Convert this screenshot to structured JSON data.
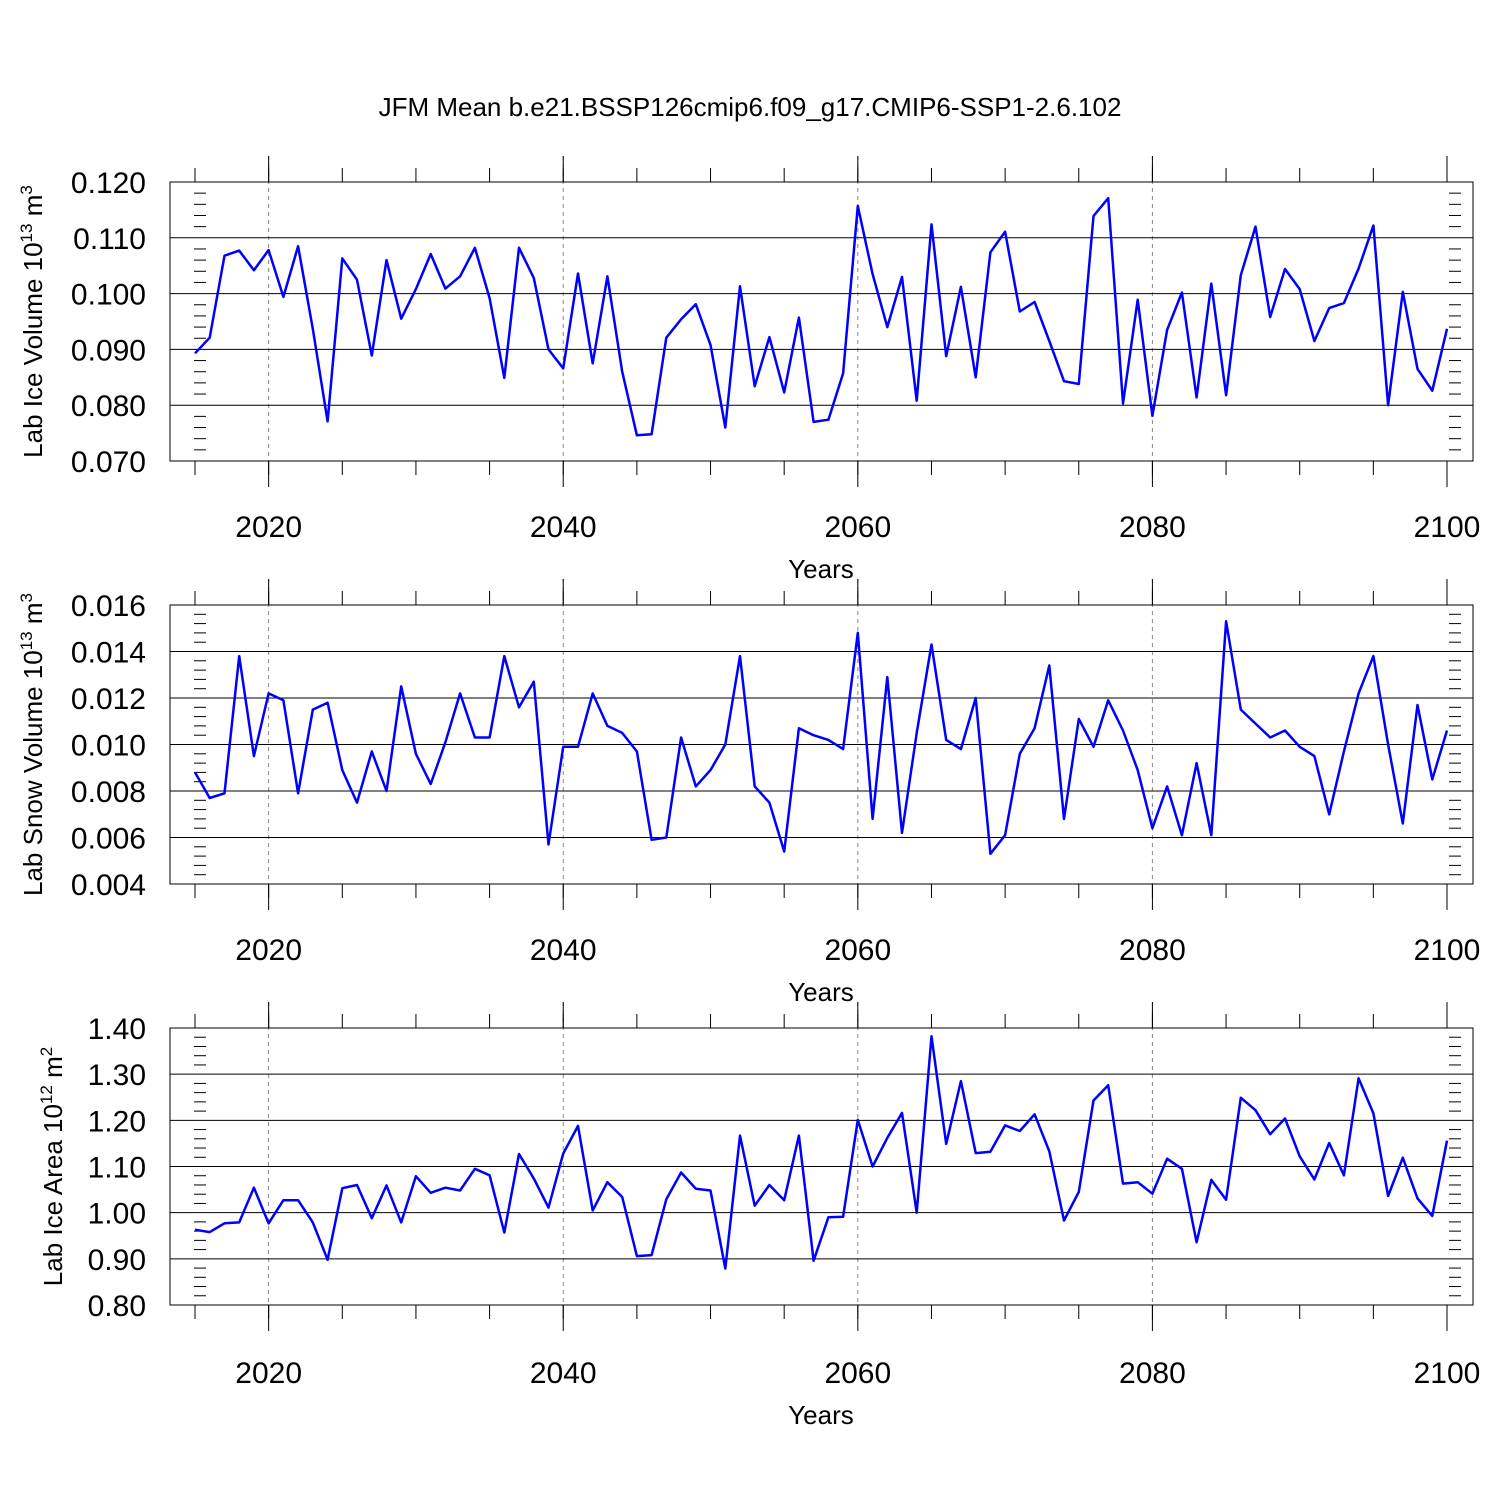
{
  "figure_title": "JFM Mean b.e21.BSSP126cmip6.f09_g17.CMIP6-SSP1-2.6.102",
  "chart_data": [
    {
      "type": "line",
      "ylabel_main": "Lab Ice Volume 10",
      "ylabel_exp": "13",
      "ylabel_unit": "m",
      "ylabel_unit_exp": "3",
      "xlabel": "Years",
      "xlim": [
        2015,
        2100
      ],
      "ylim": [
        0.07,
        0.12
      ],
      "x_ticks": [
        2020,
        2040,
        2060,
        2080,
        2100
      ],
      "y_ticks": [
        "0.070",
        "0.080",
        "0.090",
        "0.100",
        "0.110",
        "0.120"
      ],
      "series_color": "#0000ff",
      "x": [
        2015,
        2016,
        2017,
        2018,
        2019,
        2020,
        2021,
        2022,
        2023,
        2024,
        2025,
        2026,
        2027,
        2028,
        2029,
        2030,
        2031,
        2032,
        2033,
        2034,
        2035,
        2036,
        2037,
        2038,
        2039,
        2040,
        2041,
        2042,
        2043,
        2044,
        2045,
        2046,
        2047,
        2048,
        2049,
        2050,
        2051,
        2052,
        2053,
        2054,
        2055,
        2056,
        2057,
        2058,
        2059,
        2060,
        2061,
        2062,
        2063,
        2064,
        2065,
        2066,
        2067,
        2068,
        2069,
        2070,
        2071,
        2072,
        2073,
        2074,
        2075,
        2076,
        2077,
        2078,
        2079,
        2080,
        2081,
        2082,
        2083,
        2084,
        2085,
        2086,
        2087,
        2088,
        2089,
        2090,
        2091,
        2092,
        2093,
        2094,
        2095,
        2096,
        2097,
        2098,
        2099,
        2100
      ],
      "values": [
        0.0893,
        0.0921,
        0.1068,
        0.1077,
        0.1042,
        0.1078,
        0.0994,
        0.1085,
        0.0937,
        0.0771,
        0.1063,
        0.1025,
        0.0889,
        0.106,
        0.0955,
        0.1008,
        0.1071,
        0.1009,
        0.1031,
        0.1082,
        0.0992,
        0.0849,
        0.1082,
        0.1028,
        0.09,
        0.0866,
        0.1036,
        0.0875,
        0.1031,
        0.086,
        0.0746,
        0.0748,
        0.0921,
        0.0954,
        0.0981,
        0.0908,
        0.076,
        0.1013,
        0.0834,
        0.0922,
        0.0823,
        0.0957,
        0.077,
        0.0774,
        0.0857,
        0.1157,
        0.1035,
        0.094,
        0.103,
        0.0808,
        0.1124,
        0.0888,
        0.1012,
        0.085,
        0.1074,
        0.1111,
        0.0968,
        0.0985,
        0.0915,
        0.0843,
        0.0838,
        0.1139,
        0.1171,
        0.0803,
        0.0989,
        0.0781,
        0.0935,
        0.1002,
        0.0814,
        0.1018,
        0.0818,
        0.1033,
        0.112,
        0.0958,
        0.1044,
        0.1008,
        0.0915,
        0.0974,
        0.0983,
        0.1045,
        0.1122,
        0.08,
        0.1003,
        0.0865,
        0.0826,
        0.0937
      ]
    },
    {
      "type": "line",
      "ylabel_main": "Lab Snow Volume 10",
      "ylabel_exp": "13",
      "ylabel_unit": "m",
      "ylabel_unit_exp": "3",
      "xlabel": "Years",
      "xlim": [
        2015,
        2100
      ],
      "ylim": [
        0.004,
        0.016
      ],
      "x_ticks": [
        2020,
        2040,
        2060,
        2080,
        2100
      ],
      "y_ticks": [
        "0.004",
        "0.006",
        "0.008",
        "0.010",
        "0.012",
        "0.014",
        "0.016"
      ],
      "series_color": "#0000ff",
      "x": [
        2015,
        2016,
        2017,
        2018,
        2019,
        2020,
        2021,
        2022,
        2023,
        2024,
        2025,
        2026,
        2027,
        2028,
        2029,
        2030,
        2031,
        2032,
        2033,
        2034,
        2035,
        2036,
        2037,
        2038,
        2039,
        2040,
        2041,
        2042,
        2043,
        2044,
        2045,
        2046,
        2047,
        2048,
        2049,
        2050,
        2051,
        2052,
        2053,
        2054,
        2055,
        2056,
        2057,
        2058,
        2059,
        2060,
        2061,
        2062,
        2063,
        2064,
        2065,
        2066,
        2067,
        2068,
        2069,
        2070,
        2071,
        2072,
        2073,
        2074,
        2075,
        2076,
        2077,
        2078,
        2079,
        2080,
        2081,
        2082,
        2083,
        2084,
        2085,
        2086,
        2087,
        2088,
        2089,
        2090,
        2091,
        2092,
        2093,
        2094,
        2095,
        2096,
        2097,
        2098,
        2099,
        2100
      ],
      "values": [
        0.0088,
        0.0077,
        0.0079,
        0.0138,
        0.0095,
        0.0122,
        0.0119,
        0.0079,
        0.0115,
        0.0118,
        0.0089,
        0.0075,
        0.0097,
        0.008,
        0.0125,
        0.0096,
        0.0083,
        0.0101,
        0.0122,
        0.0103,
        0.0103,
        0.0138,
        0.0116,
        0.0127,
        0.0057,
        0.0099,
        0.0099,
        0.0122,
        0.0108,
        0.0105,
        0.0097,
        0.0059,
        0.006,
        0.0103,
        0.0082,
        0.0089,
        0.01,
        0.0138,
        0.0082,
        0.0075,
        0.0054,
        0.0107,
        0.0104,
        0.0102,
        0.0098,
        0.0148,
        0.0068,
        0.0129,
        0.0062,
        0.0105,
        0.0143,
        0.0102,
        0.0098,
        0.012,
        0.0053,
        0.0061,
        0.0096,
        0.0107,
        0.0134,
        0.0068,
        0.0111,
        0.0099,
        0.0119,
        0.0106,
        0.0089,
        0.0064,
        0.0082,
        0.0061,
        0.0092,
        0.0061,
        0.0153,
        0.0115,
        0.0109,
        0.0103,
        0.0106,
        0.0099,
        0.0095,
        0.007,
        0.0097,
        0.0122,
        0.0138,
        0.01,
        0.0066,
        0.0117,
        0.0085,
        0.0106
      ]
    },
    {
      "type": "line",
      "ylabel_main": "Lab Ice Area 10",
      "ylabel_exp": "12",
      "ylabel_unit": "m",
      "ylabel_unit_exp": "2",
      "xlabel": "Years",
      "xlim": [
        2015,
        2100
      ],
      "ylim": [
        0.8,
        1.4
      ],
      "x_ticks": [
        2020,
        2040,
        2060,
        2080,
        2100
      ],
      "y_ticks": [
        "0.80",
        "0.90",
        "1.00",
        "1.10",
        "1.20",
        "1.30",
        "1.40"
      ],
      "series_color": "#0000ff",
      "x": [
        2015,
        2016,
        2017,
        2018,
        2019,
        2020,
        2021,
        2022,
        2023,
        2024,
        2025,
        2026,
        2027,
        2028,
        2029,
        2030,
        2031,
        2032,
        2033,
        2034,
        2035,
        2036,
        2037,
        2038,
        2039,
        2040,
        2041,
        2042,
        2043,
        2044,
        2045,
        2046,
        2047,
        2048,
        2049,
        2050,
        2051,
        2052,
        2053,
        2054,
        2055,
        2056,
        2057,
        2058,
        2059,
        2060,
        2061,
        2062,
        2063,
        2064,
        2065,
        2066,
        2067,
        2068,
        2069,
        2070,
        2071,
        2072,
        2073,
        2074,
        2075,
        2076,
        2077,
        2078,
        2079,
        2080,
        2081,
        2082,
        2083,
        2084,
        2085,
        2086,
        2087,
        2088,
        2089,
        2090,
        2091,
        2092,
        2093,
        2094,
        2095,
        2096,
        2097,
        2098,
        2099,
        2100
      ],
      "values": [
        0.963,
        0.958,
        0.977,
        0.979,
        1.054,
        0.977,
        1.027,
        1.027,
        0.979,
        0.898,
        1.053,
        1.06,
        0.988,
        1.059,
        0.979,
        1.079,
        1.043,
        1.054,
        1.048,
        1.095,
        1.081,
        0.957,
        1.127,
        1.074,
        1.011,
        1.128,
        1.188,
        1.005,
        1.066,
        1.034,
        0.906,
        0.908,
        1.029,
        1.087,
        1.052,
        1.048,
        0.879,
        1.167,
        1.015,
        1.06,
        1.027,
        1.167,
        0.896,
        0.99,
        0.991,
        1.201,
        1.1,
        1.162,
        1.216,
        1.0,
        1.382,
        1.149,
        1.285,
        1.129,
        1.132,
        1.189,
        1.177,
        1.213,
        1.133,
        0.983,
        1.045,
        1.243,
        1.276,
        1.063,
        1.066,
        1.041,
        1.117,
        1.095,
        0.936,
        1.071,
        1.028,
        1.249,
        1.222,
        1.17,
        1.204,
        1.122,
        1.072,
        1.151,
        1.081,
        1.291,
        1.215,
        1.036,
        1.119,
        1.031,
        0.993,
        1.156
      ]
    }
  ]
}
